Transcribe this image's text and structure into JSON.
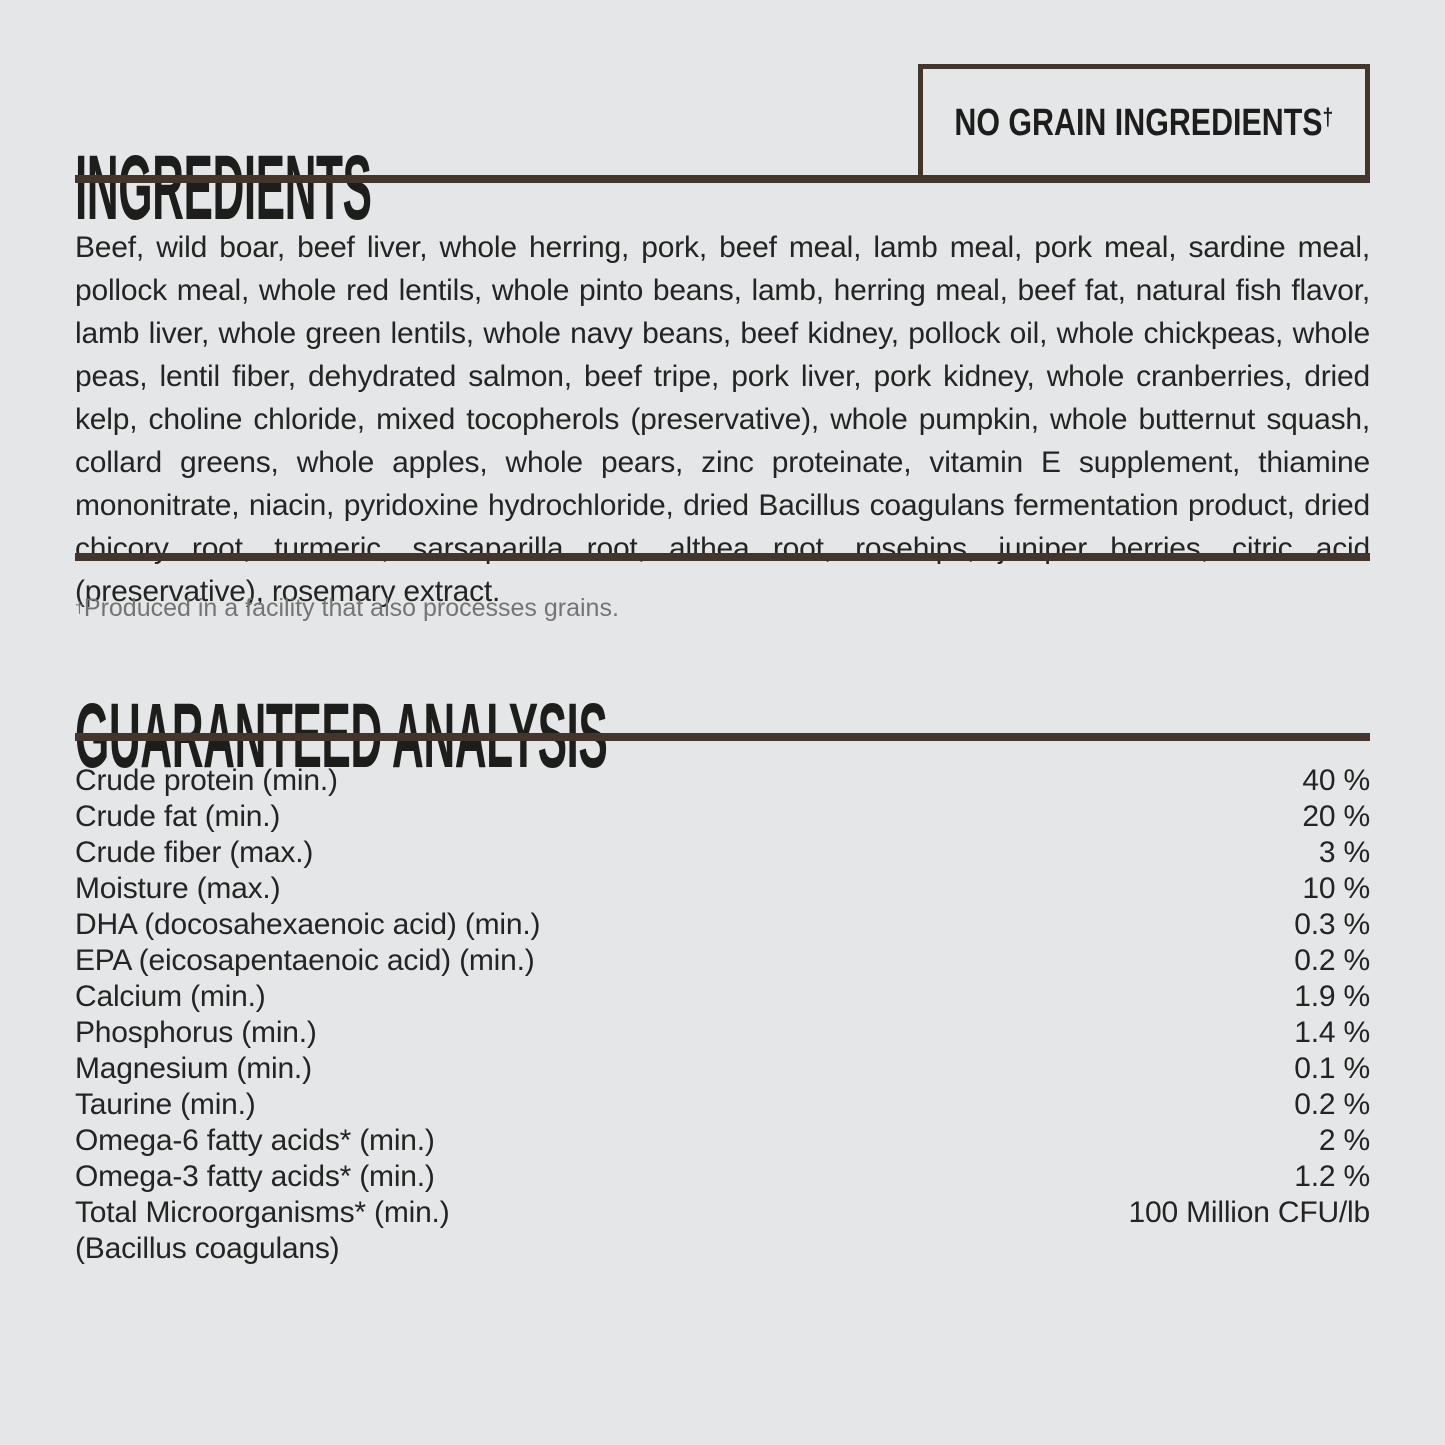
{
  "page": {
    "background_color": "#e5e6e8",
    "text_color": "#242423",
    "accent_brown": "#42352b",
    "footnote_gray": "#757473"
  },
  "ingredients": {
    "title": "INGREDIENTS",
    "badge": {
      "label": "NO GRAIN INGREDIENTS",
      "dagger": "†"
    },
    "body": "Beef, wild boar, beef liver, whole herring, pork, beef meal, lamb meal, pork meal, sardine meal, pollock meal, whole red lentils, whole pinto beans, lamb, herring meal, beef fat, natural fish flavor, lamb liver, whole green lentils, whole navy beans, beef kidney, pollock oil, whole chickpeas, whole peas, lentil fiber, dehydrated salmon, beef tripe, pork liver, pork kidney, whole cranberries, dried kelp, choline chloride, mixed tocopherols (preservative), whole pumpkin, whole butternut squash, collard greens, whole apples, whole pears, zinc proteinate, vitamin E supplement, thiamine mononitrate, niacin, pyridoxine hydrochloride, dried Bacillus coagulans fermentation product, dried chicory root, turmeric, sarsaparilla root, althea root, rosehips, juniper berries, citric acid (preservative), rosemary extract.",
    "footnote": {
      "dagger": "†",
      "text": "Produced in a facility that also processes grains."
    }
  },
  "analysis": {
    "title": "GUARANTEED ANALYSIS",
    "rows": [
      {
        "label": "Crude protein (min.)",
        "value": "40 %"
      },
      {
        "label": "Crude fat (min.)",
        "value": "20 %"
      },
      {
        "label": "Crude fiber (max.)",
        "value": "3 %"
      },
      {
        "label": "Moisture (max.)",
        "value": "10 %"
      },
      {
        "label": "DHA (docosahexaenoic acid) (min.)",
        "value": "0.3 %"
      },
      {
        "label": "EPA (eicosapentaenoic acid) (min.)",
        "value": "0.2 %"
      },
      {
        "label": "Calcium (min.)",
        "value": "1.9 %"
      },
      {
        "label": "Phosphorus (min.)",
        "value": "1.4 %"
      },
      {
        "label": "Magnesium (min.)",
        "value": "0.1 %"
      },
      {
        "label": "Taurine (min.)",
        "value": "0.2 %"
      },
      {
        "label": "Omega-6 fatty acids* (min.)",
        "value": "2 %"
      },
      {
        "label": "Omega-3 fatty acids* (min.)",
        "value": "1.2 %"
      },
      {
        "label": "Total Microorganisms* (min.)",
        "value": "100 Million CFU/lb"
      },
      {
        "label": "(Bacillus coagulans)",
        "value": ""
      }
    ]
  }
}
